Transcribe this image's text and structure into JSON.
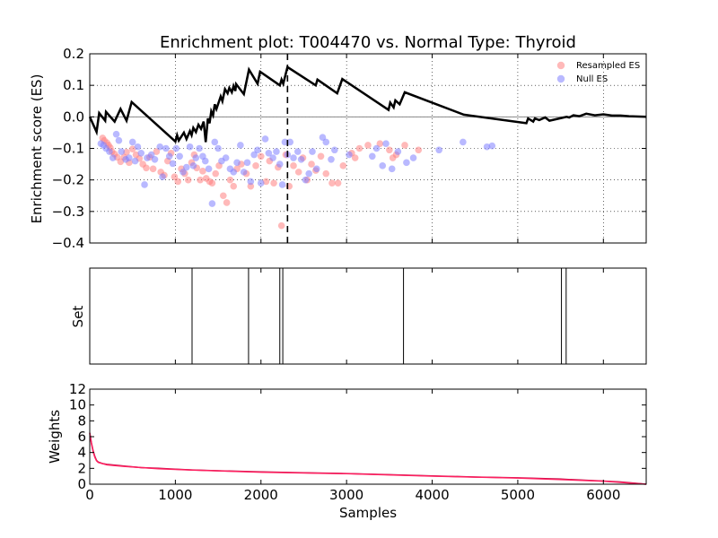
{
  "chart_data": [
    {
      "id": "es",
      "type": "line",
      "title": "Enrichment plot: T004470 vs. Normal Type: Thyroid",
      "ylabel": "Enrichment score (ES)",
      "xlabel": "",
      "xlim": [
        0,
        6500
      ],
      "ylim": [
        -0.4,
        0.2
      ],
      "yticks": [
        -0.4,
        -0.3,
        -0.2,
        -0.1,
        0.0,
        0.1,
        0.2
      ],
      "ytick_labels": [
        "−0.4",
        "−0.3",
        "−0.2",
        "−0.1",
        "0.0",
        "0.1",
        "0.2"
      ],
      "xticks": [
        0,
        1000,
        2000,
        3000,
        4000,
        5000,
        6000
      ],
      "grid": true,
      "max_es_x": 2310,
      "legend": {
        "placement": "top-right",
        "entries": [
          {
            "label": "Resampled ES",
            "color": "#ff7f7f"
          },
          {
            "label": "Null ES",
            "color": "#7f7fff"
          }
        ]
      },
      "series": [
        {
          "color": "#000000",
          "points": [
            [
              0,
              0.0
            ],
            [
              80,
              -0.048
            ],
            [
              110,
              0.012
            ],
            [
              180,
              -0.012
            ],
            [
              190,
              0.016
            ],
            [
              290,
              -0.015
            ],
            [
              360,
              0.025
            ],
            [
              430,
              -0.012
            ],
            [
              490,
              0.047
            ],
            [
              1000,
              -0.078
            ],
            [
              1020,
              -0.058
            ],
            [
              1040,
              -0.075
            ],
            [
              1100,
              -0.05
            ],
            [
              1130,
              -0.07
            ],
            [
              1170,
              -0.045
            ],
            [
              1190,
              -0.058
            ],
            [
              1210,
              -0.035
            ],
            [
              1240,
              -0.048
            ],
            [
              1270,
              -0.025
            ],
            [
              1300,
              -0.038
            ],
            [
              1330,
              -0.015
            ],
            [
              1355,
              -0.08
            ],
            [
              1380,
              -0.005
            ],
            [
              1400,
              -0.02
            ],
            [
              1420,
              0.018
            ],
            [
              1440,
              0.005
            ],
            [
              1460,
              0.04
            ],
            [
              1480,
              0.025
            ],
            [
              1530,
              0.065
            ],
            [
              1550,
              0.05
            ],
            [
              1580,
              0.088
            ],
            [
              1610,
              0.075
            ],
            [
              1630,
              0.092
            ],
            [
              1660,
              0.078
            ],
            [
              1680,
              0.098
            ],
            [
              1700,
              0.082
            ],
            [
              1710,
              0.104
            ],
            [
              1800,
              0.072
            ],
            [
              1860,
              0.15
            ],
            [
              1960,
              0.105
            ],
            [
              1990,
              0.143
            ],
            [
              2220,
              0.1
            ],
            [
              2240,
              0.118
            ],
            [
              2260,
              0.105
            ],
            [
              2310,
              0.158
            ],
            [
              2640,
              0.1
            ],
            [
              2660,
              0.118
            ],
            [
              2890,
              0.075
            ],
            [
              2950,
              0.12
            ],
            [
              3490,
              0.022
            ],
            [
              3510,
              0.045
            ],
            [
              3550,
              0.03
            ],
            [
              3570,
              0.052
            ],
            [
              3620,
              0.04
            ],
            [
              3680,
              0.078
            ],
            [
              4370,
              0.007
            ],
            [
              5100,
              -0.02
            ],
            [
              5120,
              -0.005
            ],
            [
              5180,
              -0.015
            ],
            [
              5200,
              -0.005
            ],
            [
              5250,
              -0.01
            ],
            [
              5320,
              -0.002
            ],
            [
              5370,
              -0.012
            ],
            [
              5520,
              -0.003
            ],
            [
              5570,
              0.0
            ],
            [
              5600,
              -0.002
            ],
            [
              5650,
              0.005
            ],
            [
              5720,
              0.002
            ],
            [
              5800,
              0.01
            ],
            [
              5900,
              0.005
            ],
            [
              6000,
              0.008
            ],
            [
              6100,
              0.004
            ],
            [
              6200,
              0.004
            ],
            [
              6300,
              0.002
            ],
            [
              6500,
              0.0
            ]
          ]
        }
      ],
      "resampled_es": [
        [
          150,
          -0.067
        ],
        [
          170,
          -0.075
        ],
        [
          200,
          -0.082
        ],
        [
          220,
          -0.09
        ],
        [
          240,
          -0.098
        ],
        [
          260,
          -0.11
        ],
        [
          290,
          -0.118
        ],
        [
          320,
          -0.128
        ],
        [
          360,
          -0.142
        ],
        [
          400,
          -0.128
        ],
        [
          430,
          -0.112
        ],
        [
          460,
          -0.145
        ],
        [
          500,
          -0.102
        ],
        [
          540,
          -0.12
        ],
        [
          580,
          -0.132
        ],
        [
          620,
          -0.15
        ],
        [
          660,
          -0.162
        ],
        [
          700,
          -0.128
        ],
        [
          740,
          -0.165
        ],
        [
          780,
          -0.11
        ],
        [
          830,
          -0.175
        ],
        [
          870,
          -0.185
        ],
        [
          910,
          -0.14
        ],
        [
          950,
          -0.115
        ],
        [
          990,
          -0.19
        ],
        [
          1030,
          -0.205
        ],
        [
          1070,
          -0.165
        ],
        [
          1110,
          -0.18
        ],
        [
          1150,
          -0.2
        ],
        [
          1190,
          -0.145
        ],
        [
          1220,
          -0.12
        ],
        [
          1250,
          -0.162
        ],
        [
          1290,
          -0.2
        ],
        [
          1320,
          -0.172
        ],
        [
          1360,
          -0.195
        ],
        [
          1400,
          -0.205
        ],
        [
          1430,
          -0.21
        ],
        [
          1470,
          -0.18
        ],
        [
          1510,
          -0.155
        ],
        [
          1560,
          -0.25
        ],
        [
          1600,
          -0.272
        ],
        [
          1640,
          -0.2
        ],
        [
          1680,
          -0.22
        ],
        [
          1720,
          -0.165
        ],
        [
          1770,
          -0.15
        ],
        [
          1830,
          -0.18
        ],
        [
          1880,
          -0.22
        ],
        [
          1940,
          -0.155
        ],
        [
          2000,
          -0.125
        ],
        [
          2060,
          -0.205
        ],
        [
          2100,
          -0.14
        ],
        [
          2150,
          -0.21
        ],
        [
          2200,
          -0.16
        ],
        [
          2240,
          -0.345
        ],
        [
          2290,
          -0.12
        ],
        [
          2330,
          -0.22
        ],
        [
          2380,
          -0.155
        ],
        [
          2440,
          -0.175
        ],
        [
          2490,
          -0.13
        ],
        [
          2540,
          -0.2
        ],
        [
          2590,
          -0.15
        ],
        [
          2640,
          -0.17
        ],
        [
          2700,
          -0.125
        ],
        [
          2760,
          -0.18
        ],
        [
          2830,
          -0.21
        ],
        [
          2900,
          -0.21
        ],
        [
          2960,
          -0.155
        ],
        [
          3060,
          -0.115
        ],
        [
          3100,
          -0.13
        ],
        [
          3150,
          -0.1
        ],
        [
          3250,
          -0.09
        ],
        [
          3390,
          -0.085
        ],
        [
          3500,
          -0.105
        ],
        [
          3540,
          -0.13
        ],
        [
          3580,
          -0.12
        ],
        [
          3680,
          -0.09
        ],
        [
          3840,
          -0.105
        ]
      ],
      "null_es": [
        [
          130,
          -0.085
        ],
        [
          160,
          -0.09
        ],
        [
          190,
          -0.1
        ],
        [
          230,
          -0.11
        ],
        [
          270,
          -0.13
        ],
        [
          310,
          -0.055
        ],
        [
          340,
          -0.075
        ],
        [
          370,
          -0.11
        ],
        [
          420,
          -0.135
        ],
        [
          460,
          -0.13
        ],
        [
          500,
          -0.08
        ],
        [
          530,
          -0.14
        ],
        [
          560,
          -0.095
        ],
        [
          600,
          -0.115
        ],
        [
          640,
          -0.215
        ],
        [
          670,
          -0.13
        ],
        [
          720,
          -0.12
        ],
        [
          760,
          -0.135
        ],
        [
          820,
          -0.095
        ],
        [
          850,
          -0.19
        ],
        [
          890,
          -0.1
        ],
        [
          930,
          -0.125
        ],
        [
          970,
          -0.148
        ],
        [
          1010,
          -0.1
        ],
        [
          1050,
          -0.125
        ],
        [
          1090,
          -0.175
        ],
        [
          1130,
          -0.16
        ],
        [
          1170,
          -0.095
        ],
        [
          1210,
          -0.155
        ],
        [
          1240,
          -0.13
        ],
        [
          1280,
          -0.1
        ],
        [
          1320,
          -0.125
        ],
        [
          1350,
          -0.14
        ],
        [
          1390,
          -0.165
        ],
        [
          1430,
          -0.275
        ],
        [
          1460,
          -0.08
        ],
        [
          1500,
          -0.1
        ],
        [
          1540,
          -0.14
        ],
        [
          1590,
          -0.13
        ],
        [
          1640,
          -0.165
        ],
        [
          1680,
          -0.175
        ],
        [
          1720,
          -0.145
        ],
        [
          1760,
          -0.09
        ],
        [
          1800,
          -0.175
        ],
        [
          1840,
          -0.145
        ],
        [
          1880,
          -0.205
        ],
        [
          1920,
          -0.12
        ],
        [
          1960,
          -0.105
        ],
        [
          2000,
          -0.21
        ],
        [
          2050,
          -0.07
        ],
        [
          2090,
          -0.115
        ],
        [
          2140,
          -0.13
        ],
        [
          2180,
          -0.11
        ],
        [
          2220,
          -0.15
        ],
        [
          2250,
          -0.215
        ],
        [
          2280,
          -0.08
        ],
        [
          2310,
          -0.12
        ],
        [
          2340,
          -0.08
        ],
        [
          2380,
          -0.13
        ],
        [
          2430,
          -0.11
        ],
        [
          2470,
          -0.135
        ],
        [
          2520,
          -0.2
        ],
        [
          2560,
          -0.18
        ],
        [
          2600,
          -0.11
        ],
        [
          2650,
          -0.165
        ],
        [
          2720,
          -0.065
        ],
        [
          2760,
          -0.08
        ],
        [
          2820,
          -0.135
        ],
        [
          2860,
          -0.105
        ],
        [
          3030,
          -0.12
        ],
        [
          3300,
          -0.125
        ],
        [
          3350,
          -0.1
        ],
        [
          3420,
          -0.155
        ],
        [
          3460,
          -0.085
        ],
        [
          3530,
          -0.165
        ],
        [
          3600,
          -0.11
        ],
        [
          3700,
          -0.145
        ],
        [
          3780,
          -0.13
        ],
        [
          4080,
          -0.105
        ],
        [
          4360,
          -0.08
        ],
        [
          4640,
          -0.095
        ],
        [
          4700,
          -0.092
        ]
      ]
    },
    {
      "id": "set",
      "type": "bar",
      "ylabel": "Set",
      "xlim": [
        0,
        6500
      ],
      "grid": false,
      "set_positions": [
        1195,
        1855,
        2220,
        2255,
        3665,
        5510,
        5565
      ]
    },
    {
      "id": "weights",
      "type": "line",
      "xlabel": "Samples",
      "ylabel": "Weights",
      "xlim": [
        0,
        6500
      ],
      "ylim": [
        0,
        12
      ],
      "xticks": [
        0,
        1000,
        2000,
        3000,
        4000,
        5000,
        6000
      ],
      "yticks": [
        0,
        2,
        4,
        6,
        8,
        10,
        12
      ],
      "grid": false,
      "series": [
        {
          "color": "#b0003a",
          "points": [
            [
              0,
              6.5
            ],
            [
              20,
              5.2
            ],
            [
              40,
              4.2
            ],
            [
              60,
              3.5
            ],
            [
              80,
              3.0
            ],
            [
              100,
              2.8
            ],
            [
              150,
              2.6
            ],
            [
              200,
              2.5
            ],
            [
              400,
              2.3
            ],
            [
              600,
              2.1
            ],
            [
              800,
              2.0
            ],
            [
              1000,
              1.9
            ],
            [
              1200,
              1.8
            ],
            [
              1500,
              1.7
            ],
            [
              2000,
              1.55
            ],
            [
              2500,
              1.45
            ],
            [
              3000,
              1.35
            ],
            [
              3500,
              1.2
            ],
            [
              4000,
              1.05
            ],
            [
              4500,
              0.9
            ],
            [
              5000,
              0.8
            ],
            [
              5500,
              0.65
            ],
            [
              6000,
              0.4
            ],
            [
              6200,
              0.28
            ],
            [
              6400,
              0.1
            ],
            [
              6500,
              0.0
            ]
          ]
        },
        {
          "color": "#ff2060",
          "points": [
            [
              0,
              6.4
            ],
            [
              20,
              5.1
            ],
            [
              40,
              4.1
            ],
            [
              60,
              3.4
            ],
            [
              80,
              2.95
            ],
            [
              100,
              2.75
            ],
            [
              200,
              2.45
            ],
            [
              400,
              2.25
            ],
            [
              800,
              1.95
            ],
            [
              1200,
              1.78
            ],
            [
              2000,
              1.52
            ],
            [
              3000,
              1.32
            ],
            [
              4000,
              1.02
            ],
            [
              5000,
              0.78
            ],
            [
              6000,
              0.38
            ],
            [
              6500,
              0.0
            ]
          ]
        }
      ]
    }
  ]
}
